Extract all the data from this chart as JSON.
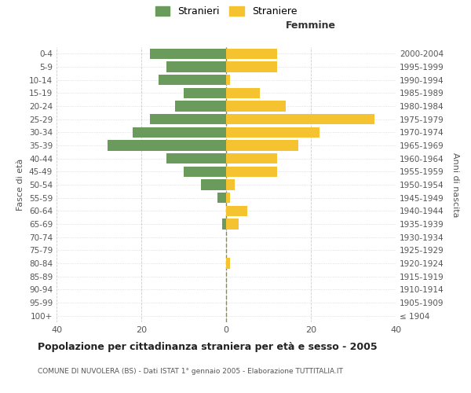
{
  "age_groups": [
    "0-4",
    "5-9",
    "10-14",
    "15-19",
    "20-24",
    "25-29",
    "30-34",
    "35-39",
    "40-44",
    "45-49",
    "50-54",
    "55-59",
    "60-64",
    "65-69",
    "70-74",
    "75-79",
    "80-84",
    "85-89",
    "90-94",
    "95-99",
    "100+"
  ],
  "birth_years": [
    "2000-2004",
    "1995-1999",
    "1990-1994",
    "1985-1989",
    "1980-1984",
    "1975-1979",
    "1970-1974",
    "1965-1969",
    "1960-1964",
    "1955-1959",
    "1950-1954",
    "1945-1949",
    "1940-1944",
    "1935-1939",
    "1930-1934",
    "1925-1929",
    "1920-1924",
    "1915-1919",
    "1910-1914",
    "1905-1909",
    "≤ 1904"
  ],
  "males": [
    18,
    14,
    16,
    10,
    12,
    18,
    22,
    28,
    14,
    10,
    6,
    2,
    0,
    1,
    0,
    0,
    0,
    0,
    0,
    0,
    0
  ],
  "females": [
    12,
    12,
    1,
    8,
    14,
    35,
    22,
    17,
    12,
    12,
    2,
    1,
    5,
    3,
    0,
    0,
    1,
    0,
    0,
    0,
    0
  ],
  "male_color": "#6a9b5c",
  "female_color": "#f5c330",
  "grid_color": "#cccccc",
  "dashed_line_color": "#888866",
  "title": "Popolazione per cittadinanza straniera per età e sesso - 2005",
  "subtitle": "COMUNE DI NUVOLERA (BS) - Dati ISTAT 1° gennaio 2005 - Elaborazione TUTTITALIA.IT",
  "xlabel_right": "Femmine",
  "ylabel_left": "Fasce di età",
  "ylabel_right": "Anni di nascita",
  "legend_male": "Stranieri",
  "legend_female": "Straniere",
  "xlim": 40,
  "bar_height": 0.8
}
